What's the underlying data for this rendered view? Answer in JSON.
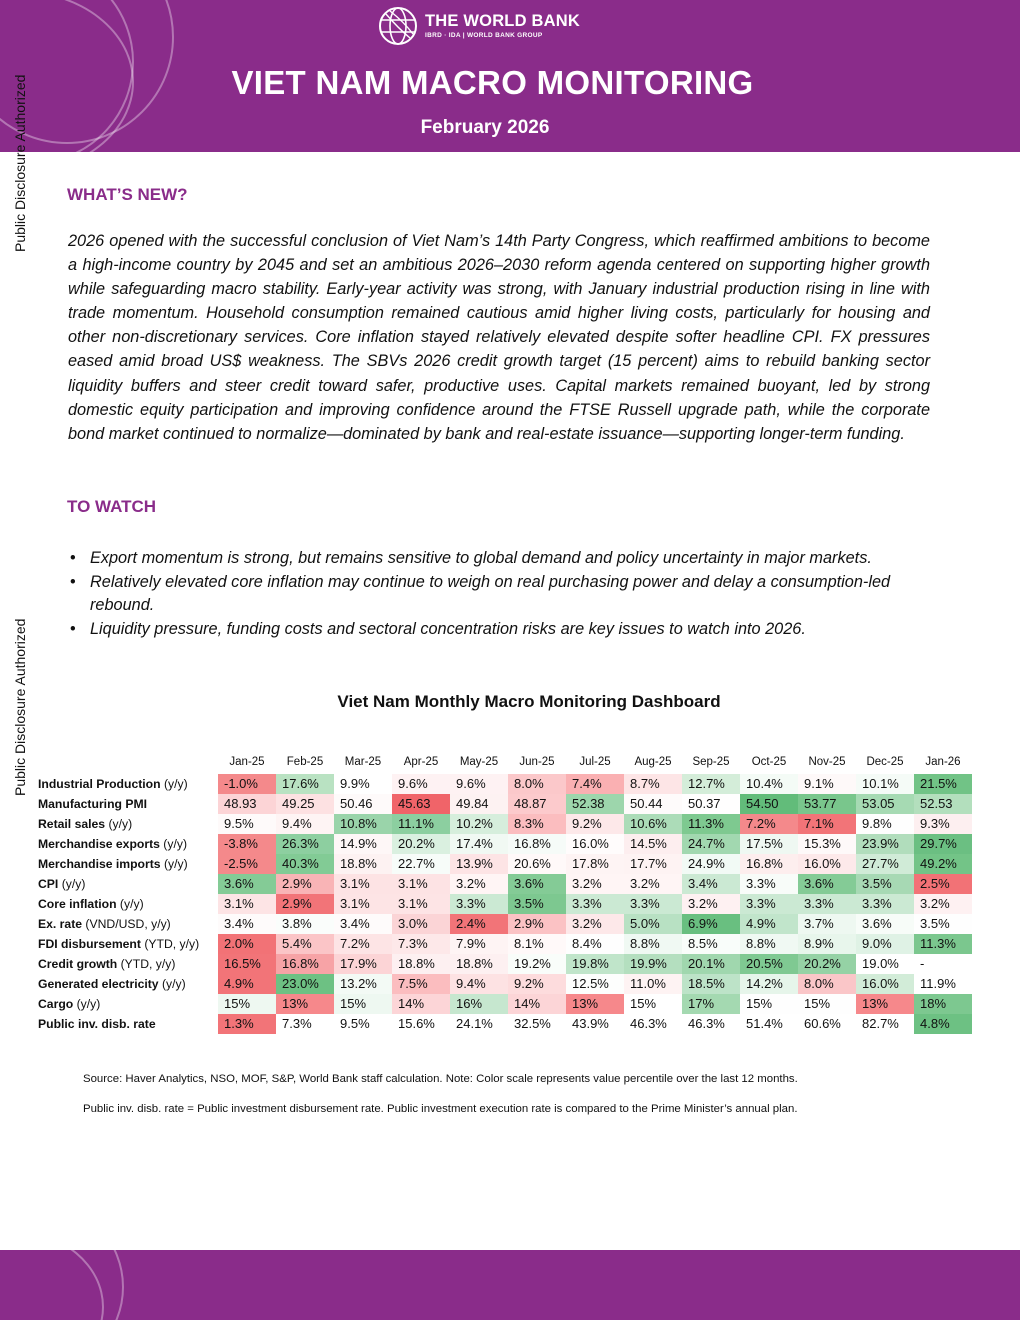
{
  "header": {
    "logo_name": "THE WORLD BANK",
    "logo_sub": "IBRD · IDA | WORLD BANK GROUP",
    "title": "VIET NAM MACRO MONITORING",
    "date": "February 2026",
    "color": "#8a2c8a"
  },
  "side_label": "Public Disclosure Authorized",
  "whats_new": {
    "heading": "WHAT’S NEW?",
    "text": "2026 opened with the successful conclusion of Viet Nam’s 14th Party Congress, which reaffirmed ambitions to become a high-income country by 2045 and set an ambitious 2026–2030 reform agenda centered on supporting higher growth while safeguarding macro stability. Early-year activity was strong, with January industrial production rising in line with trade momentum. Household consumption remained cautious amid higher living costs, particularly for housing and other non-discretionary services. Core inflation stayed relatively elevated despite softer headline CPI. FX pressures eased amid broad US$ weakness. The SBVs 2026 credit growth target (15 percent) aims to rebuild banking sector liquidity buffers and steer credit toward safer, productive uses. Capital markets remained buoyant, led by strong domestic equity participation and improving confidence around the FTSE Russell upgrade path, while the corporate bond market continued to normalize—dominated by bank and real-estate issuance—supporting longer-term funding."
  },
  "to_watch": {
    "heading": "TO WATCH",
    "bullets": [
      "Export momentum is strong, but remains sensitive to global demand and policy uncertainty in major markets.",
      "Relatively elevated core inflation may continue to weigh on real purchasing power and delay a consumption-led rebound.",
      "Liquidity pressure, funding costs and sectoral concentration risks are key issues to watch into 2026."
    ]
  },
  "dashboard": {
    "title": "Viet Nam Monthly Macro Monitoring Dashboard",
    "months": [
      "Jan-25",
      "Feb-25",
      "Mar-25",
      "Apr-25",
      "May-25",
      "Jun-25",
      "Jul-25",
      "Aug-25",
      "Sep-25",
      "Oct-25",
      "Nov-25",
      "Dec-25",
      "Jan-26"
    ],
    "rows": [
      {
        "name": "Industrial Production",
        "unit": " (y/y)",
        "values": [
          "-1.0%",
          "17.6%",
          "9.9%",
          "9.6%",
          "9.6%",
          "8.0%",
          "7.4%",
          "8.7%",
          "12.7%",
          "10.4%",
          "9.1%",
          "10.1%",
          "21.5%"
        ],
        "colors": [
          "#f4898b",
          "#b9e2c2",
          "#ffffff",
          "#fef2f3",
          "#fef2f3",
          "#fbc8ca",
          "#fab0b2",
          "#fde5e6",
          "#d4edd9",
          "#f4fbf6",
          "#fef9f9",
          "#f5fbf7",
          "#71c386"
        ]
      },
      {
        "name": "Manufacturing PMI",
        "unit": "",
        "values": [
          "48.93",
          "49.25",
          "50.46",
          "45.63",
          "49.84",
          "48.87",
          "52.38",
          "50.44",
          "50.37",
          "54.50",
          "53.77",
          "53.05",
          "52.53"
        ],
        "colors": [
          "#fcd4d6",
          "#fde1e2",
          "#fefafa",
          "#f06469",
          "#fdf2f2",
          "#fccacc",
          "#9dd6ac",
          "#fefbfb",
          "#fffefe",
          "#62bc7a",
          "#79c68c",
          "#a6dab3",
          "#b3dfbd"
        ]
      },
      {
        "name": "Retail sales",
        "unit": " (y/y)",
        "values": [
          "9.5%",
          "9.4%",
          "10.8%",
          "11.1%",
          "10.2%",
          "8.3%",
          "9.2%",
          "10.6%",
          "11.3%",
          "7.2%",
          "7.1%",
          "9.8%",
          "9.3%"
        ],
        "colors": [
          "#fefafa",
          "#fef4f4",
          "#9ad4aa",
          "#8ccfa0",
          "#d6eedc",
          "#fbbdbf",
          "#fde8e9",
          "#acdcb8",
          "#7ec990",
          "#f4898b",
          "#f27478",
          "#fefefe",
          "#fdeff0"
        ]
      },
      {
        "name": "Merchandise exports",
        "unit": " (y/y)",
        "values": [
          "-3.8%",
          "26.3%",
          "14.9%",
          "20.2%",
          "17.4%",
          "16.8%",
          "16.0%",
          "14.5%",
          "24.7%",
          "17.5%",
          "15.3%",
          "23.9%",
          "29.7%"
        ],
        "colors": [
          "#f4898b",
          "#8dcfa0",
          "#fef7f7",
          "#daf0e0",
          "#f1f9f3",
          "#f6fbf8",
          "#fffcfc",
          "#fdeeef",
          "#a2d8b0",
          "#eff8f2",
          "#fef9f9",
          "#b1ddbc",
          "#6bbf82"
        ]
      },
      {
        "name": "Merchandise imports",
        "unit": " (y/y)",
        "values": [
          "-2.5%",
          "40.3%",
          "18.8%",
          "22.7%",
          "13.9%",
          "20.6%",
          "17.8%",
          "17.7%",
          "24.9%",
          "16.8%",
          "16.0%",
          "27.7%",
          "49.2%"
        ],
        "colors": [
          "#f4898b",
          "#82cb95",
          "#fdf2f2",
          "#f7fcf9",
          "#fde4e5",
          "#fff9f9",
          "#fef4f4",
          "#fef3f3",
          "#f2faf5",
          "#fdeeee",
          "#fde9ea",
          "#d0ebd7",
          "#73c487"
        ]
      },
      {
        "name": "CPI",
        "unit": " (y/y)",
        "values": [
          "3.6%",
          "2.9%",
          "3.1%",
          "3.1%",
          "3.2%",
          "3.6%",
          "3.2%",
          "3.2%",
          "3.4%",
          "3.3%",
          "3.6%",
          "3.5%",
          "2.5%"
        ],
        "colors": [
          "#84cb96",
          "#f9b4b6",
          "#fde3e4",
          "#fde3e4",
          "#fff5f5",
          "#84cb96",
          "#fff5f5",
          "#fff5f5",
          "#cbe9d3",
          "#f8fcf9",
          "#84cb96",
          "#a7d9b4",
          "#f27276"
        ]
      },
      {
        "name": "Core inflation",
        "unit": " (y/y)",
        "values": [
          "3.1%",
          "2.9%",
          "3.1%",
          "3.1%",
          "3.3%",
          "3.5%",
          "3.3%",
          "3.3%",
          "3.2%",
          "3.3%",
          "3.3%",
          "3.3%",
          "3.2%"
        ],
        "colors": [
          "#fde4e5",
          "#f27478",
          "#fde4e5",
          "#fde4e5",
          "#cbe9d3",
          "#7dc890",
          "#cbe9d3",
          "#cbe9d3",
          "#fef1f2",
          "#cbe9d3",
          "#cbe9d3",
          "#cbe9d3",
          "#fef1f2"
        ]
      },
      {
        "name": "Ex. rate",
        "unit": " (VND/USD, y/y)",
        "values": [
          "3.4%",
          "3.8%",
          "3.4%",
          "3.0%",
          "2.4%",
          "2.9%",
          "3.2%",
          "5.0%",
          "6.9%",
          "4.9%",
          "3.7%",
          "3.6%",
          "3.5%"
        ],
        "colors": [
          "#fefbfb",
          "#fafdfb",
          "#fefbfb",
          "#fbd4d6",
          "#f27478",
          "#fbc2c4",
          "#fde8e9",
          "#b8e1c3",
          "#69bf80",
          "#c1e5cb",
          "#eef8f1",
          "#f7fcf8",
          "#fefefe"
        ]
      },
      {
        "name": "FDI disbursement",
        "unit": " (YTD, y/y)",
        "values": [
          "2.0%",
          "5.4%",
          "7.2%",
          "7.3%",
          "7.9%",
          "8.1%",
          "8.4%",
          "8.8%",
          "8.5%",
          "8.8%",
          "8.9%",
          "9.0%",
          "11.3%"
        ],
        "colors": [
          "#f27276",
          "#fbc5c7",
          "#fde4e5",
          "#fde8e9",
          "#fef4f4",
          "#fff9f9",
          "#fefefe",
          "#f0f9f3",
          "#f9fdfa",
          "#f0f9f3",
          "#e8f6ec",
          "#dff2e5",
          "#7bc78e"
        ]
      },
      {
        "name": "Credit growth",
        "unit": " (YTD, y/y)",
        "values": [
          "16.5%",
          "16.8%",
          "17.9%",
          "18.8%",
          "18.8%",
          "19.2%",
          "19.8%",
          "19.9%",
          "20.1%",
          "20.5%",
          "20.2%",
          "19.0%",
          "-"
        ],
        "colors": [
          "#f27478",
          "#f7a3a6",
          "#fcd4d6",
          "#fdf0f1",
          "#fdf0f1",
          "#f9fdfa",
          "#c0e5ca",
          "#b4dfbf",
          "#a0d7ae",
          "#7fc992",
          "#95d2a5",
          "#ffffff",
          "#ffffff"
        ]
      },
      {
        "name": "Generated electricity",
        "unit": " (y/y)",
        "values": [
          "4.9%",
          "23.0%",
          "13.2%",
          "7.5%",
          "9.4%",
          "9.2%",
          "12.5%",
          "11.0%",
          "18.5%",
          "14.2%",
          "8.0%",
          "16.0%",
          "11.9%"
        ],
        "colors": [
          "#f27478",
          "#6dc183",
          "#f3faf5",
          "#fbbdbf",
          "#fde2e3",
          "#fddcdd",
          "#fdfefd",
          "#fef3f3",
          "#bde3c8",
          "#e6f5ea",
          "#fac6c8",
          "#d2ecd8",
          "#ffffff"
        ]
      },
      {
        "name": "Cargo",
        "unit": " (y/y)",
        "values": [
          "15%",
          "13%",
          "15%",
          "14%",
          "16%",
          "14%",
          "13%",
          "15%",
          "17%",
          "15%",
          "15%",
          "13%",
          "18%"
        ],
        "colors": [
          "#eef8f1",
          "#f6888b",
          "#eef8f1",
          "#fcd5d7",
          "#c6e7cf",
          "#fcd5d7",
          "#f6888b",
          "#ffffff",
          "#a4d9b1",
          "#fefefe",
          "#fefefe",
          "#f6888b",
          "#7dc890"
        ]
      },
      {
        "name": "Public inv. disb. rate",
        "unit": "",
        "values": [
          "1.3%",
          "7.3%",
          "9.5%",
          "15.6%",
          "24.1%",
          "32.5%",
          "43.9%",
          "46.3%",
          "46.3%",
          "51.4%",
          "60.6%",
          "82.7%",
          "4.8%"
        ],
        "colors": [
          "#f27478",
          "#ffffff",
          "#ffffff",
          "#ffffff",
          "#ffffff",
          "#ffffff",
          "#ffffff",
          "#ffffff",
          "#ffffff",
          "#ffffff",
          "#ffffff",
          "#ffffff",
          "#6dc183"
        ]
      }
    ]
  },
  "notes": [
    "Source: Haver Analytics, NSO, MOF, S&P, World Bank staff calculation. Note: Color scale represents value percentile over the last 12 months.",
    "Public inv. disb. rate = Public investment disbursement rate. Public investment execution rate is compared to the Prime Minister’s annual plan."
  ]
}
